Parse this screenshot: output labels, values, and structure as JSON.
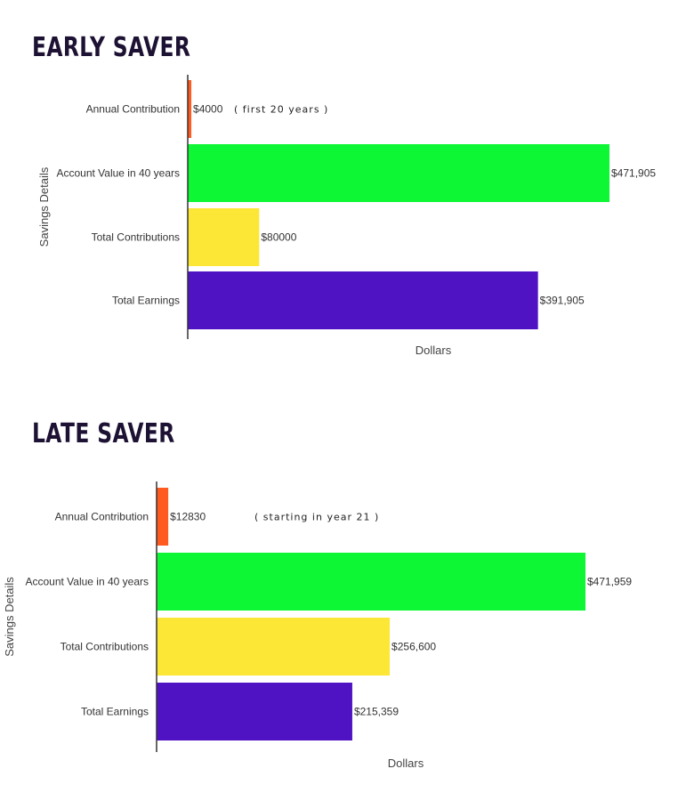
{
  "chart_data": [
    {
      "type": "bar",
      "title": "EARLY SAVER",
      "orientation": "horizontal",
      "categories": [
        "Annual Contribution",
        "Account Value in 40 years",
        "Total Contributions",
        "Total Earnings"
      ],
      "values": [
        4000,
        471905,
        80000,
        391905
      ],
      "value_labels": [
        "$4000",
        "$471,905",
        "$80000",
        "$391,905"
      ],
      "annotation": "( first 20 years )",
      "xlabel": "Dollars",
      "ylabel": "Savings Details",
      "colors": [
        "#ff5a1f",
        "#0ef735",
        "#fde736",
        "#5013c4"
      ],
      "grid": false
    },
    {
      "type": "bar",
      "title": "LATE SAVER",
      "orientation": "horizontal",
      "categories": [
        "Annual Contribution",
        "Account Value in 40 years",
        "Total Contributions",
        "Total Earnings"
      ],
      "values": [
        12830,
        471959,
        256600,
        215359
      ],
      "value_labels": [
        "$12830",
        "$471,959",
        "$256,600",
        "$215,359"
      ],
      "annotation": "( starting in year 21 )",
      "xlabel": "Dollars",
      "ylabel": "Savings Details",
      "colors": [
        "#ff5a1f",
        "#0ef735",
        "#fde736",
        "#5013c4"
      ],
      "grid": false
    }
  ]
}
